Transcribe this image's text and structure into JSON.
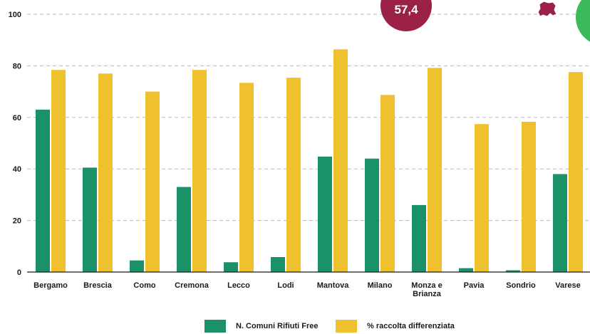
{
  "chart_data": {
    "type": "bar",
    "categories": [
      "Bergamo",
      "Brescia",
      "Como",
      "Cremona",
      "Lecco",
      "Lodi",
      "Mantova",
      "Milano",
      "Monza e Brianza",
      "Pavia",
      "Sondrio",
      "Varese"
    ],
    "series": [
      {
        "name": "N. Comuni Rifiuti Free",
        "color": "#1a9166",
        "values": [
          63,
          40.5,
          4.5,
          33,
          3.8,
          5.8,
          44.8,
          44,
          26,
          1.5,
          0.7,
          38
        ]
      },
      {
        "name": "% raccolta differenziata",
        "color": "#f0c12f",
        "values": [
          78.4,
          77,
          70,
          78.4,
          73.4,
          75.4,
          86.4,
          68.7,
          79.2,
          57.4,
          58.3,
          77.6
        ]
      }
    ],
    "yticks": [
      "0",
      "20",
      "40",
      "60",
      "80",
      "100"
    ],
    "ylim": [
      0,
      100
    ],
    "grid": true,
    "legend_position": "bottom",
    "badge": {
      "text": "57,4",
      "color": "#9b2146"
    },
    "accent_colors": {
      "green_circle": "#3dbb5b",
      "icon": "#9b2146"
    }
  }
}
